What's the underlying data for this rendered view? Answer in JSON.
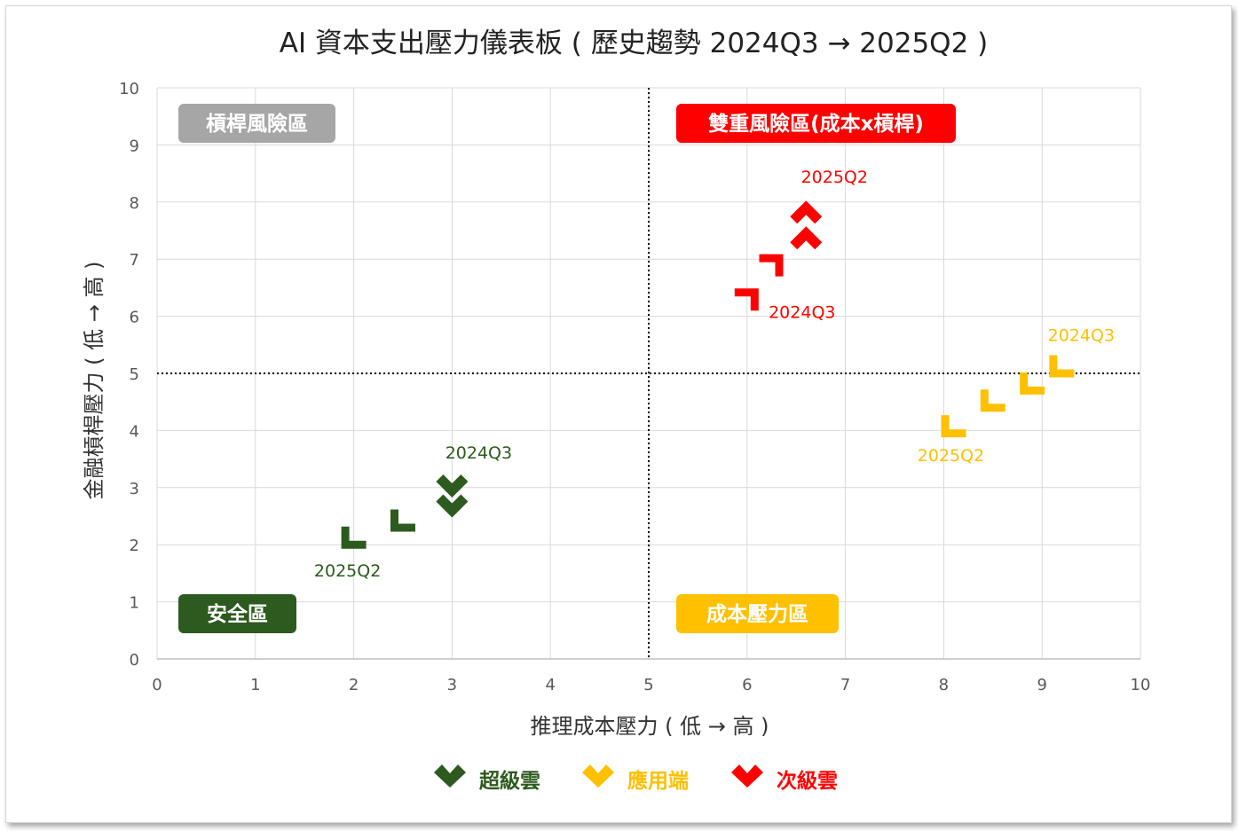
{
  "chart_data": {
    "type": "scatter",
    "title": "AI 資本支出壓力儀表板 ( 歷史趨勢 2024Q3 → 2025Q2 )",
    "xlabel": "推理成本壓力 ( 低 → 高 )",
    "ylabel": "金融槓桿壓力 ( 低 → 高 )",
    "xlim": [
      0,
      10
    ],
    "ylim": [
      0,
      10
    ],
    "xticks": [
      "0",
      "1",
      "2",
      "3",
      "4",
      "5",
      "6",
      "7",
      "8",
      "9",
      "10"
    ],
    "yticks": [
      "0",
      "1",
      "2",
      "3",
      "4",
      "5",
      "6",
      "7",
      "8",
      "9",
      "10"
    ],
    "grid": true,
    "reference_lines": {
      "x": 5,
      "y": 5
    },
    "quadrants": [
      {
        "label": "槓桿風險區",
        "color": "#A6A6A6",
        "position": "top-left"
      },
      {
        "label": "雙重風險區(成本x槓桿)",
        "color": "#FF0000",
        "position": "top-right"
      },
      {
        "label": "安全區",
        "color": "#2D5A1E",
        "position": "bottom-left"
      },
      {
        "label": "成本壓力區",
        "color": "#FFC000",
        "position": "bottom-right"
      }
    ],
    "series": [
      {
        "name": "超級雲",
        "color": "#2D5A1E",
        "points": [
          {
            "x": 3.0,
            "y": 2.95,
            "marker": "chevron",
            "label": "2024Q3"
          },
          {
            "x": 3.0,
            "y": 2.6,
            "marker": "chevron",
            "label": ""
          },
          {
            "x": 2.5,
            "y": 2.4,
            "marker": "corner",
            "label": ""
          },
          {
            "x": 2.0,
            "y": 2.1,
            "marker": "corner",
            "label": "2025Q2"
          }
        ]
      },
      {
        "name": "應用端",
        "color": "#FFC000",
        "points": [
          {
            "x": 9.2,
            "y": 5.1,
            "marker": "corner",
            "label": "2024Q3"
          },
          {
            "x": 8.9,
            "y": 4.8,
            "marker": "corner",
            "label": ""
          },
          {
            "x": 8.5,
            "y": 4.5,
            "marker": "corner",
            "label": ""
          },
          {
            "x": 8.1,
            "y": 4.05,
            "marker": "corner",
            "label": "2025Q2"
          }
        ]
      },
      {
        "name": "次級雲",
        "color": "#FF0000",
        "points": [
          {
            "x": 6.0,
            "y": 6.3,
            "marker": "corner-r",
            "label": "2024Q3"
          },
          {
            "x": 6.25,
            "y": 6.9,
            "marker": "corner-r",
            "label": ""
          },
          {
            "x": 6.6,
            "y": 7.45,
            "marker": "chevron-up",
            "label": ""
          },
          {
            "x": 6.6,
            "y": 7.9,
            "marker": "chevron-up",
            "label": "2025Q2"
          }
        ]
      }
    ],
    "legend": {
      "position": "bottom"
    }
  }
}
